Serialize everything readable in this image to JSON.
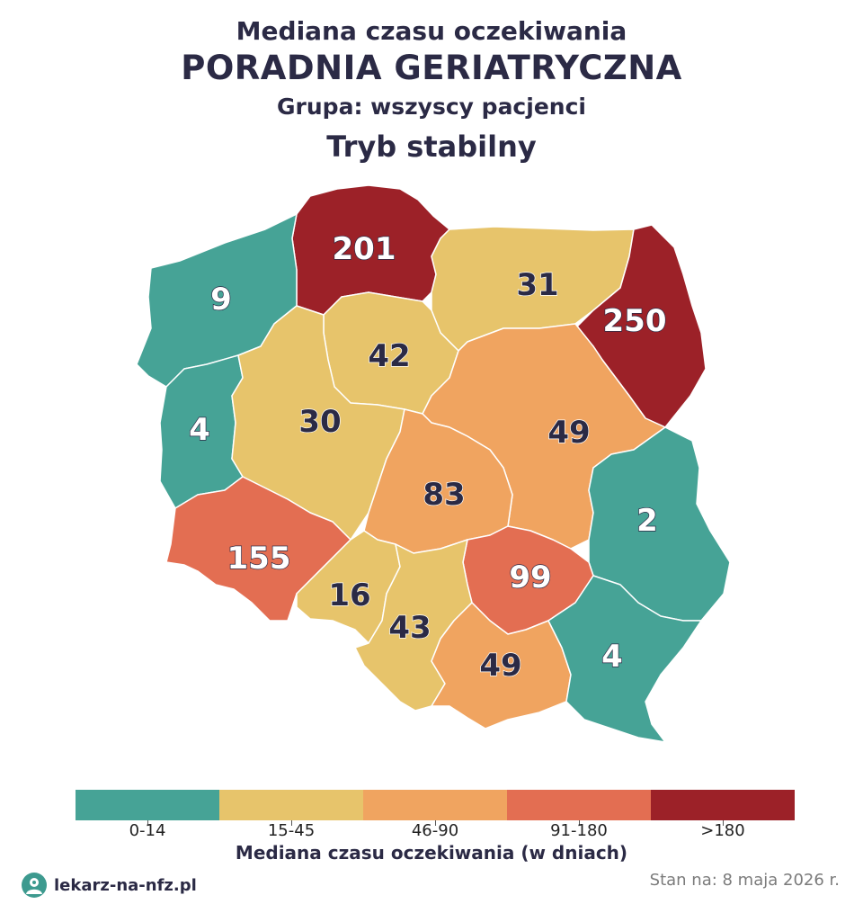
{
  "header": {
    "supertitle": "Mediana czasu oczekiwania",
    "title": "PORADNIA GERIATRYCZNA",
    "group": "Grupa: wszyscy pacjenci",
    "mode": "Tryb stabilny"
  },
  "colors": {
    "0-14": "#46a396",
    "15-45": "#e7c46b",
    "46-90": "#f0a460",
    "91-180": "#e36e52",
    ">180": "#9c2128"
  },
  "regions": [
    {
      "name": "pomorskie",
      "value": "201",
      "class": ">180"
    },
    {
      "name": "warminsko-mazurskie",
      "value": "31",
      "class": "15-45"
    },
    {
      "name": "podlaskie",
      "value": "250",
      "class": ">180"
    },
    {
      "name": "zachodniopomorskie",
      "value": "9",
      "class": "0-14"
    },
    {
      "name": "kujawsko-pomorskie",
      "value": "42",
      "class": "15-45"
    },
    {
      "name": "lubuskie",
      "value": "4",
      "class": "0-14"
    },
    {
      "name": "wielkopolskie",
      "value": "30",
      "class": "15-45"
    },
    {
      "name": "mazowieckie",
      "value": "49",
      "class": "46-90"
    },
    {
      "name": "lodzkie",
      "value": "83",
      "class": "46-90"
    },
    {
      "name": "lubelskie",
      "value": "2",
      "class": "0-14"
    },
    {
      "name": "dolnoslaskie",
      "value": "155",
      "class": "91-180"
    },
    {
      "name": "opolskie",
      "value": "16",
      "class": "15-45"
    },
    {
      "name": "swietokrzyskie",
      "value": "99",
      "class": "91-180"
    },
    {
      "name": "slaskie",
      "value": "43",
      "class": "15-45"
    },
    {
      "name": "malopolskie",
      "value": "49",
      "class": "46-90"
    },
    {
      "name": "podkarpackie",
      "value": "4",
      "class": "0-14"
    }
  ],
  "legend": {
    "labels": [
      "0-14",
      "15-45",
      "46-90",
      "91-180",
      ">180"
    ],
    "title": "Mediana czasu oczekiwania (w dniach)"
  },
  "footer": {
    "brand": "lekarz-na-nfz.pl",
    "date": "Stan na: 8 maja 2026 r."
  }
}
